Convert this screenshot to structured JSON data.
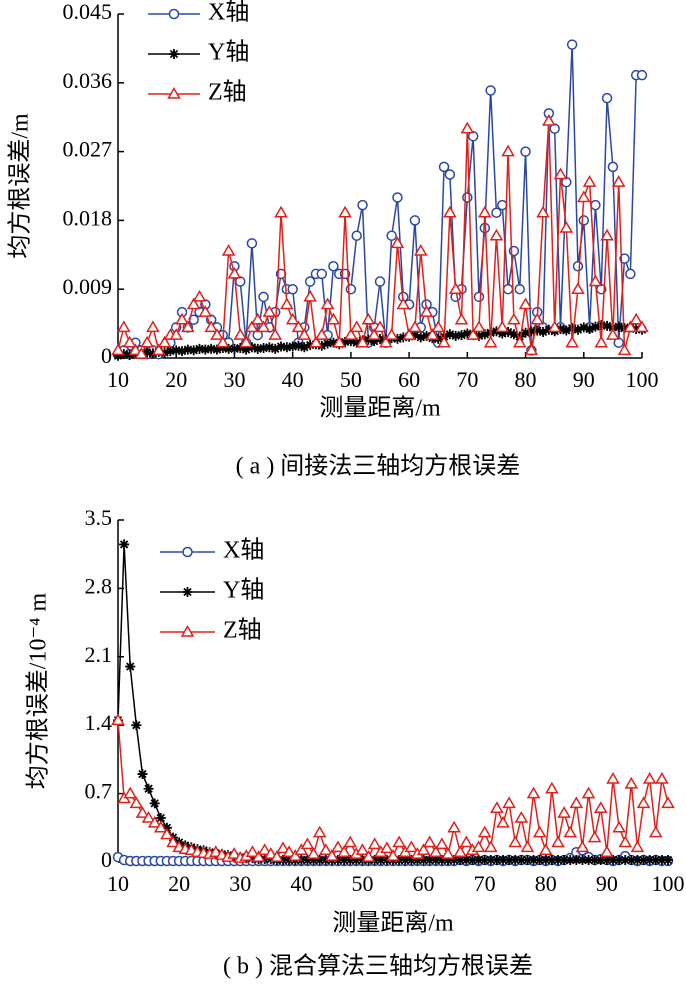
{
  "chart_data": [
    {
      "type": "line",
      "ylabel": "均方根误差/m",
      "xlabel": "测量距离/m",
      "caption": "( a ) 间接法三轴均方根误差",
      "x": [
        10,
        11,
        12,
        13,
        14,
        15,
        16,
        17,
        18,
        19,
        20,
        21,
        22,
        23,
        24,
        25,
        26,
        27,
        28,
        29,
        30,
        31,
        32,
        33,
        34,
        35,
        36,
        37,
        38,
        39,
        40,
        41,
        42,
        43,
        44,
        45,
        46,
        47,
        48,
        49,
        50,
        51,
        52,
        53,
        54,
        55,
        56,
        57,
        58,
        59,
        60,
        61,
        62,
        63,
        64,
        65,
        66,
        67,
        68,
        69,
        70,
        71,
        72,
        73,
        74,
        75,
        76,
        77,
        78,
        79,
        80,
        81,
        82,
        83,
        84,
        85,
        86,
        87,
        88,
        89,
        90,
        91,
        92,
        93,
        94,
        95,
        96,
        97,
        98,
        99,
        100
      ],
      "xlim": [
        10,
        100
      ],
      "xticks": [
        10,
        20,
        30,
        40,
        50,
        60,
        70,
        80,
        90,
        100
      ],
      "ylim": [
        0,
        0.045
      ],
      "yticks": [
        0,
        0.009,
        0.018,
        0.027,
        0.036,
        0.045
      ],
      "legend": "upper left",
      "series": [
        {
          "name": "X轴",
          "color": "#2a48a0",
          "marker": "o",
          "values": [
            0.0005,
            0.001,
            0.0005,
            0.002,
            0.001,
            0.0005,
            0.001,
            0.0005,
            0.001,
            0.002,
            0.004,
            0.006,
            0.004,
            0.005,
            0.006,
            0.007,
            0.005,
            0.004,
            0.003,
            0.002,
            0.012,
            0.01,
            0.002,
            0.015,
            0.003,
            0.008,
            0.004,
            0.006,
            0.011,
            0.009,
            0.009,
            0.002,
            0.004,
            0.01,
            0.011,
            0.011,
            0.003,
            0.012,
            0.011,
            0.011,
            0.009,
            0.016,
            0.02,
            0.002,
            0.004,
            0.01,
            0.002,
            0.016,
            0.021,
            0.008,
            0.007,
            0.018,
            0.004,
            0.007,
            0.006,
            0.002,
            0.025,
            0.024,
            0.008,
            0.009,
            0.021,
            0.029,
            0.008,
            0.017,
            0.035,
            0.019,
            0.02,
            0.009,
            0.014,
            0.009,
            0.027,
            0.001,
            0.006,
            0.004,
            0.032,
            0.03,
            0.004,
            0.023,
            0.041,
            0.012,
            0.018,
            0.004,
            0.02,
            0.009,
            0.034,
            0.025,
            0.002,
            0.013,
            0.011,
            0.037,
            0.037
          ]
        },
        {
          "name": "Y轴",
          "color": "#000000",
          "marker": "*",
          "values": [
            0.0003,
            0.0005,
            0.0004,
            0.0006,
            0.0005,
            0.0007,
            0.0006,
            0.0008,
            0.0007,
            0.0009,
            0.001,
            0.0009,
            0.0011,
            0.001,
            0.0012,
            0.0011,
            0.0012,
            0.0011,
            0.0013,
            0.0012,
            0.0012,
            0.0013,
            0.0011,
            0.0014,
            0.0012,
            0.0013,
            0.0014,
            0.0012,
            0.0015,
            0.0014,
            0.0015,
            0.0016,
            0.0014,
            0.0017,
            0.0018,
            0.0016,
            0.0019,
            0.002,
            0.0018,
            0.0021,
            0.0022,
            0.002,
            0.0023,
            0.0024,
            0.0022,
            0.0025,
            0.0024,
            0.0026,
            0.0025,
            0.0027,
            0.0028,
            0.003,
            0.0027,
            0.0029,
            0.0026,
            0.0025,
            0.0028,
            0.0031,
            0.0029,
            0.003,
            0.0032,
            0.003,
            0.0029,
            0.0031,
            0.0033,
            0.0035,
            0.0032,
            0.0034,
            0.0031,
            0.0028,
            0.0033,
            0.0035,
            0.0036,
            0.0034,
            0.0037,
            0.0035,
            0.0038,
            0.0036,
            0.0039,
            0.0037,
            0.004,
            0.0038,
            0.0041,
            0.0043,
            0.0042,
            0.004,
            0.0041,
            0.0039,
            0.004,
            0.0038,
            0.0037
          ]
        },
        {
          "name": "Z轴",
          "color": "#e0201b",
          "marker": "^",
          "values": [
            0.001,
            0.004,
            0.002,
            0.001,
            0.0005,
            0.002,
            0.004,
            0.001,
            0.002,
            0.003,
            0.003,
            0.005,
            0.004,
            0.007,
            0.008,
            0.006,
            0.004,
            0.003,
            0.002,
            0.014,
            0.011,
            0.003,
            0.002,
            0.004,
            0.005,
            0.004,
            0.006,
            0.003,
            0.019,
            0.007,
            0.005,
            0.004,
            0.003,
            0.008,
            0.002,
            0.003,
            0.007,
            0.005,
            0.002,
            0.019,
            0.003,
            0.004,
            0.002,
            0.005,
            0.003,
            0.004,
            0.002,
            0.003,
            0.015,
            0.007,
            0.003,
            0.004,
            0.014,
            0.006,
            0.003,
            0.004,
            0.002,
            0.019,
            0.009,
            0.005,
            0.03,
            0.003,
            0.004,
            0.019,
            0.002,
            0.016,
            0.004,
            0.027,
            0.005,
            0.002,
            0.007,
            0.001,
            0.005,
            0.019,
            0.031,
            0.004,
            0.024,
            0.017,
            0.002,
            0.009,
            0.021,
            0.023,
            0.01,
            0.002,
            0.016,
            0.003,
            0.023,
            0.001,
            0.004,
            0.005,
            0.004
          ]
        }
      ]
    },
    {
      "type": "line",
      "ylabel": "均方根误差/10⁻⁴ m",
      "xlabel": "测量距离/m",
      "caption": "( b ) 混合算法三轴均方根误差",
      "x": [
        10,
        11,
        12,
        13,
        14,
        15,
        16,
        17,
        18,
        19,
        20,
        21,
        22,
        23,
        24,
        25,
        26,
        27,
        28,
        29,
        30,
        31,
        32,
        33,
        34,
        35,
        36,
        37,
        38,
        39,
        40,
        41,
        42,
        43,
        44,
        45,
        46,
        47,
        48,
        49,
        50,
        51,
        52,
        53,
        54,
        55,
        56,
        57,
        58,
        59,
        60,
        61,
        62,
        63,
        64,
        65,
        66,
        67,
        68,
        69,
        70,
        71,
        72,
        73,
        74,
        75,
        76,
        77,
        78,
        79,
        80,
        81,
        82,
        83,
        84,
        85,
        86,
        87,
        88,
        89,
        90,
        91,
        92,
        93,
        94,
        95,
        96,
        97,
        98,
        99,
        100
      ],
      "xlim": [
        10,
        100
      ],
      "xticks": [
        10,
        20,
        30,
        40,
        50,
        60,
        70,
        80,
        90,
        100
      ],
      "ylim": [
        0,
        3.5
      ],
      "yticks": [
        0,
        0.7,
        1.4,
        2.1,
        2.8,
        3.5
      ],
      "legend": "upper left",
      "series": [
        {
          "name": "X轴",
          "color": "#2a48a0",
          "marker": "o",
          "values": [
            0.05,
            0.02,
            0.01,
            0.01,
            0.01,
            0.01,
            0.01,
            0.01,
            0.01,
            0.01,
            0.01,
            0.01,
            0.01,
            0.01,
            0.01,
            0.01,
            0.01,
            0.01,
            0.01,
            0.01,
            0.01,
            0.01,
            0.01,
            0.01,
            0.01,
            0.01,
            0.01,
            0.01,
            0.01,
            0.01,
            0.01,
            0.01,
            0.01,
            0.01,
            0.01,
            0.01,
            0.01,
            0.01,
            0.01,
            0.01,
            0.01,
            0.01,
            0.01,
            0.01,
            0.01,
            0.01,
            0.01,
            0.01,
            0.01,
            0.01,
            0.01,
            0.01,
            0.01,
            0.01,
            0.01,
            0.01,
            0.02,
            0.01,
            0.02,
            0.01,
            0.02,
            0.01,
            0.02,
            0.01,
            0.02,
            0.01,
            0.02,
            0.02,
            0.01,
            0.02,
            0.01,
            0.02,
            0.01,
            0.02,
            0.04,
            0.1,
            0.12,
            0.05,
            0.02,
            0.03,
            0.02,
            0.01,
            0.02,
            0.06,
            0.02,
            0.01,
            0.02,
            0.01,
            0.02,
            0.01,
            0.01
          ]
        },
        {
          "name": "Y轴",
          "color": "#000000",
          "marker": "*",
          "values": [
            1.45,
            3.25,
            2.0,
            1.4,
            0.9,
            0.75,
            0.6,
            0.45,
            0.35,
            0.25,
            0.2,
            0.17,
            0.15,
            0.13,
            0.12,
            0.1,
            0.09,
            0.08,
            0.07,
            0.06,
            0.05,
            0.04,
            0.04,
            0.03,
            0.03,
            0.03,
            0.02,
            0.02,
            0.02,
            0.02,
            0.02,
            0.02,
            0.02,
            0.02,
            0.02,
            0.02,
            0.02,
            0.02,
            0.02,
            0.02,
            0.02,
            0.02,
            0.02,
            0.02,
            0.02,
            0.02,
            0.02,
            0.02,
            0.02,
            0.02,
            0.02,
            0.02,
            0.02,
            0.02,
            0.02,
            0.02,
            0.02,
            0.02,
            0.02,
            0.02,
            0.02,
            0.02,
            0.02,
            0.02,
            0.02,
            0.02,
            0.02,
            0.02,
            0.02,
            0.02,
            0.02,
            0.02,
            0.02,
            0.02,
            0.02,
            0.02,
            0.02,
            0.02,
            0.02,
            0.02,
            0.02,
            0.02,
            0.02,
            0.02,
            0.02,
            0.02,
            0.02,
            0.02,
            0.02,
            0.02,
            0.02
          ]
        },
        {
          "name": "Z轴",
          "color": "#e0201b",
          "marker": "^",
          "values": [
            1.45,
            0.65,
            0.7,
            0.6,
            0.5,
            0.45,
            0.4,
            0.35,
            0.28,
            0.2,
            0.15,
            0.13,
            0.12,
            0.1,
            0.09,
            0.08,
            0.1,
            0.07,
            0.05,
            0.08,
            0.04,
            0.06,
            0.1,
            0.05,
            0.12,
            0.08,
            0.05,
            0.14,
            0.1,
            0.06,
            0.12,
            0.18,
            0.08,
            0.3,
            0.12,
            0.06,
            0.15,
            0.1,
            0.2,
            0.08,
            0.12,
            0.05,
            0.18,
            0.1,
            0.14,
            0.06,
            0.2,
            0.1,
            0.15,
            0.08,
            0.12,
            0.2,
            0.1,
            0.18,
            0.08,
            0.35,
            0.1,
            0.2,
            0.12,
            0.15,
            0.3,
            0.15,
            0.55,
            0.4,
            0.6,
            0.2,
            0.45,
            0.15,
            0.7,
            0.3,
            0.12,
            0.75,
            0.2,
            0.5,
            0.3,
            0.6,
            0.15,
            0.7,
            0.25,
            0.55,
            0.1,
            0.85,
            0.35,
            0.2,
            0.8,
            0.15,
            0.6,
            0.85,
            0.3,
            0.85,
            0.6
          ]
        }
      ]
    }
  ]
}
